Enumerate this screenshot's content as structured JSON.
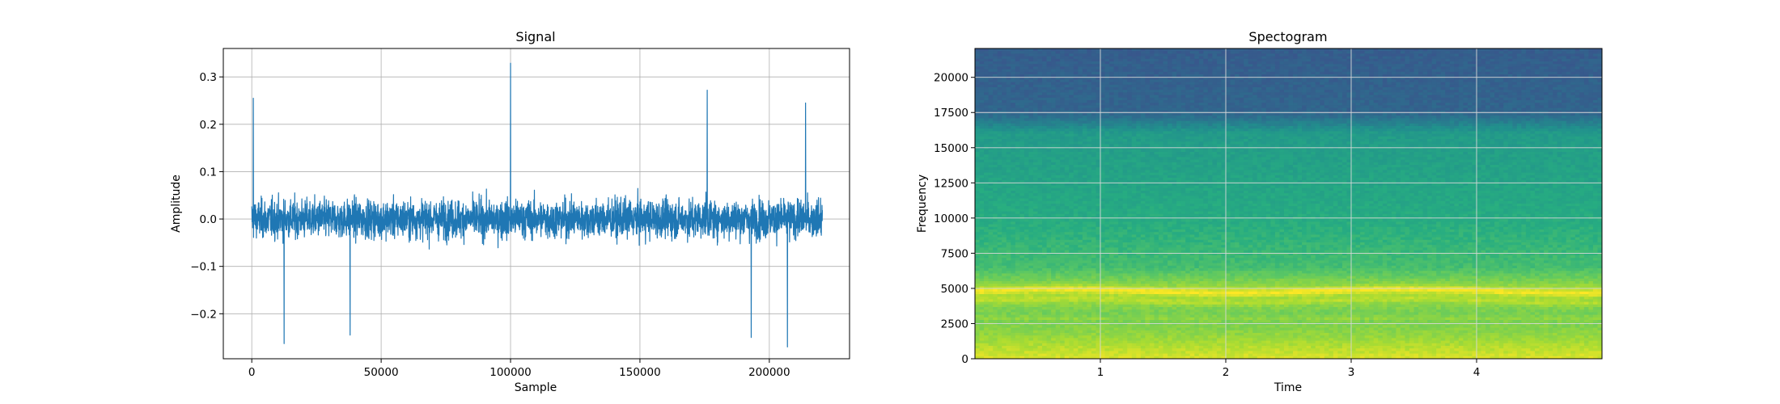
{
  "chart_data": [
    {
      "type": "line",
      "title": "Signal",
      "xlabel": "Sample",
      "ylabel": "Amplitude",
      "xlim": [
        -11000,
        231000
      ],
      "ylim": [
        -0.295,
        0.36
      ],
      "x_ticks": [
        0,
        50000,
        100000,
        150000,
        200000
      ],
      "x_tick_labels": [
        "0",
        "50000",
        "100000",
        "150000",
        "200000"
      ],
      "y_ticks": [
        -0.2,
        -0.1,
        0.0,
        0.1,
        0.2,
        0.3
      ],
      "y_tick_labels": [
        "−0.2",
        "−0.1",
        "0.0",
        "0.1",
        "0.2",
        "0.3"
      ],
      "grid": true,
      "series": [
        {
          "color": "#1f77b4",
          "x_range": [
            0,
            220500
          ],
          "amplitude_range": [
            -0.27,
            0.33
          ],
          "peaks": [
            {
              "x": 600,
              "y": 0.255
            },
            {
              "x": 12500,
              "y": -0.263
            },
            {
              "x": 38000,
              "y": -0.245
            },
            {
              "x": 100000,
              "y": 0.329
            },
            {
              "x": 176000,
              "y": 0.272
            },
            {
              "x": 207000,
              "y": -0.27
            },
            {
              "x": 193000,
              "y": -0.25
            },
            {
              "x": 214000,
              "y": 0.245
            }
          ]
        }
      ]
    },
    {
      "type": "heatmap",
      "title": "Spectogram",
      "xlabel": "Time",
      "ylabel": "Frequency",
      "xlim": [
        0,
        5.0
      ],
      "ylim": [
        0,
        22050
      ],
      "x_ticks": [
        1,
        2,
        3,
        4
      ],
      "x_tick_labels": [
        "1",
        "2",
        "3",
        "4"
      ],
      "y_ticks": [
        0,
        2500,
        5000,
        7500,
        10000,
        12500,
        15000,
        17500,
        20000
      ],
      "y_tick_labels": [
        "0",
        "2500",
        "5000",
        "7500",
        "10000",
        "12500",
        "15000",
        "17500",
        "20000"
      ],
      "grid": true,
      "colormap": "viridis",
      "bands_hz": [
        {
          "frequency": 0,
          "level": 0.95
        },
        {
          "frequency": 1500,
          "level": 0.85
        },
        {
          "frequency": 3000,
          "level": 0.78
        },
        {
          "frequency": 4800,
          "level": 0.88
        },
        {
          "frequency": 6500,
          "level": 0.7
        },
        {
          "frequency": 10000,
          "level": 0.62
        },
        {
          "frequency": 16000,
          "level": 0.55
        },
        {
          "frequency": 17500,
          "level": 0.33
        },
        {
          "frequency": 22050,
          "level": 0.3
        }
      ]
    }
  ]
}
